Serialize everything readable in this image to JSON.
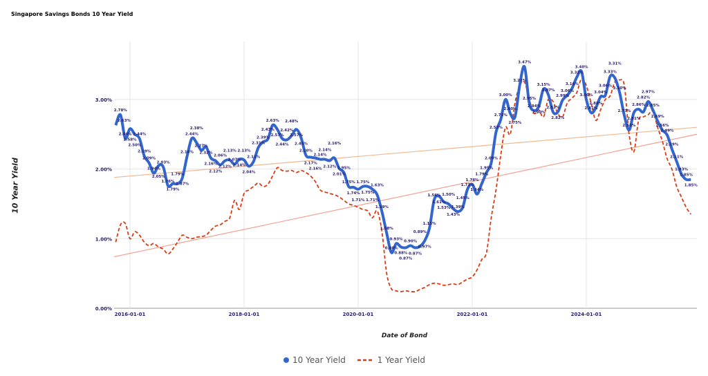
{
  "chart_data": {
    "type": "line",
    "title": "Singapore Savings Bonds 10 Year Yield",
    "xlabel": "Date of Bond",
    "ylabel": "10 Year Yield",
    "ylim": [
      0,
      3.8
    ],
    "y_ticks": [
      "0.00%",
      "1.00%",
      "2.00%",
      "3.00%"
    ],
    "y_tick_values": [
      0,
      1,
      2,
      3
    ],
    "x_ticks": [
      "2016-01-01",
      "2018-01-01",
      "2020-01-01",
      "2022-01-01",
      "2024-01-01"
    ],
    "grid": true,
    "legend_position": "bottom",
    "x_start": "2015-10",
    "x_end": "2025-11",
    "x_frequency": "monthly",
    "series": [
      {
        "name": "10 Year Yield",
        "color": "#3366cc",
        "style": "solid",
        "data_labels": true,
        "values": [
          2.63,
          2.78,
          2.44,
          2.58,
          2.5,
          2.44,
          2.19,
          2.09,
          1.94,
          2.05,
          2.03,
          1.76,
          1.79,
          1.79,
          1.87,
          2.18,
          2.44,
          2.38,
          2.27,
          2.32,
          2.16,
          2.12,
          2.06,
          2.12,
          2.13,
          2.07,
          2.14,
          2.13,
          2.04,
          2.11,
          2.31,
          2.39,
          2.43,
          2.63,
          2.57,
          2.44,
          2.42,
          2.48,
          2.57,
          2.45,
          2.2,
          2.17,
          2.16,
          2.14,
          2.14,
          2.12,
          2.16,
          2.01,
          1.95,
          1.75,
          1.74,
          1.71,
          1.75,
          1.75,
          1.71,
          1.63,
          1.39,
          1.08,
          0.8,
          0.93,
          0.88,
          0.87,
          0.9,
          0.87,
          0.89,
          0.97,
          1.15,
          1.56,
          1.61,
          1.53,
          1.5,
          1.43,
          1.39,
          1.45,
          1.71,
          1.78,
          1.64,
          1.79,
          1.95,
          2.09,
          2.53,
          2.71,
          3.0,
          2.8,
          2.75,
          3.21,
          3.47,
          2.95,
          2.84,
          2.9,
          3.15,
          3.07,
          2.82,
          2.82,
          2.99,
          3.06,
          3.16,
          3.32,
          3.4,
          3.0,
          2.81,
          2.88,
          3.04,
          3.06,
          3.33,
          3.31,
          3.1,
          2.77,
          2.56,
          2.81,
          2.86,
          2.82,
          2.97,
          2.85,
          2.69,
          2.56,
          2.49,
          2.29,
          2.11,
          1.93,
          1.85,
          1.85
        ]
      },
      {
        "name": "1 Year Yield",
        "color": "#dc3912",
        "style": "dashed",
        "data_labels": false,
        "values": [
          0.95,
          1.2,
          1.22,
          1.0,
          1.1,
          1.05,
          0.95,
          0.9,
          0.93,
          0.88,
          0.85,
          0.78,
          0.85,
          0.95,
          1.05,
          1.02,
          1.0,
          1.02,
          1.03,
          1.05,
          1.12,
          1.18,
          1.2,
          1.25,
          1.3,
          1.55,
          1.42,
          1.65,
          1.7,
          1.75,
          1.8,
          1.75,
          1.78,
          1.9,
          2.02,
          1.98,
          1.97,
          1.98,
          1.95,
          1.98,
          1.95,
          1.9,
          1.82,
          1.7,
          1.67,
          1.65,
          1.63,
          1.6,
          1.55,
          1.5,
          1.48,
          1.45,
          1.42,
          1.4,
          1.3,
          1.4,
          1.1,
          0.5,
          0.28,
          0.25,
          0.24,
          0.25,
          0.24,
          0.24,
          0.27,
          0.3,
          0.34,
          0.36,
          0.35,
          0.33,
          0.34,
          0.35,
          0.34,
          0.38,
          0.42,
          0.45,
          0.55,
          0.7,
          0.8,
          1.3,
          1.7,
          2.2,
          2.6,
          2.5,
          2.95,
          3.2,
          3.25,
          3.0,
          2.8,
          2.85,
          2.75,
          3.0,
          2.97,
          2.8,
          2.75,
          2.95,
          3.02,
          3.1,
          3.3,
          3.2,
          2.95,
          2.7,
          2.85,
          3.0,
          3.05,
          3.25,
          3.28,
          3.2,
          2.5,
          2.25,
          2.7,
          2.75,
          2.78,
          2.83,
          2.6,
          2.4,
          2.15,
          2.0,
          1.75,
          1.6,
          1.45,
          1.35
        ]
      }
    ],
    "trendlines": [
      {
        "series": "10 Year Yield",
        "color": "#f0b890",
        "start_value": 1.88,
        "end_value": 2.6
      },
      {
        "series": "1 Year Yield",
        "color": "#f4a090",
        "start_value": 0.74,
        "end_value": 2.5
      }
    ]
  }
}
